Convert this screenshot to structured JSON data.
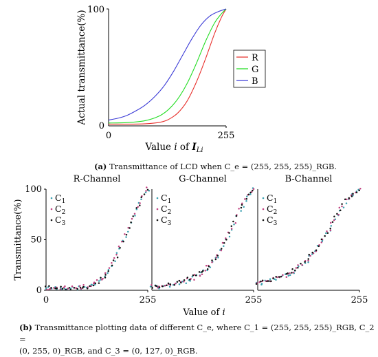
{
  "chart_data": [
    {
      "type": "line",
      "panel": "a",
      "title": "",
      "xlabel": "Value i of I_Li",
      "ylabel": "Actual transmittance(%)",
      "xlim": [
        0,
        255
      ],
      "ylim": [
        0,
        100
      ],
      "xticks": [
        "0",
        "255"
      ],
      "yticks": [
        "0",
        "100"
      ],
      "legend_position": "right",
      "series": [
        {
          "name": "R",
          "color": "#e8302c",
          "x": [
            0,
            40,
            80,
            110,
            130,
            150,
            170,
            190,
            210,
            230,
            245,
            255
          ],
          "y": [
            1.5,
            1.5,
            1.8,
            3,
            5.5,
            11,
            21,
            37,
            57,
            79,
            93,
            100
          ]
        },
        {
          "name": "G",
          "color": "#22dd22",
          "x": [
            0,
            40,
            80,
            110,
            130,
            150,
            170,
            190,
            210,
            230,
            245,
            255
          ],
          "y": [
            2.5,
            2.8,
            4.5,
            8.5,
            14,
            23,
            36,
            53,
            72,
            88,
            96,
            100
          ]
        },
        {
          "name": "B",
          "color": "#3a3ad6",
          "x": [
            0,
            20,
            40,
            60,
            80,
            100,
            120,
            140,
            160,
            180,
            200,
            220,
            240,
            255
          ],
          "y": [
            5,
            6.5,
            9,
            13,
            18,
            25,
            34,
            46,
            60,
            74,
            86,
            94,
            98,
            100
          ]
        }
      ]
    },
    {
      "type": "scatter",
      "panel": "b",
      "title": "R-Channel",
      "xlabel": "",
      "ylabel": "Transmittance(%)",
      "xlim": [
        0,
        255
      ],
      "ylim": [
        0,
        100
      ],
      "xticks": [
        "0",
        "255"
      ],
      "yticks": [
        "0",
        "50",
        "100"
      ],
      "legend": [
        "C1",
        "C2",
        "C3"
      ],
      "series": [
        {
          "name": "C1",
          "color": "#3aa0b0",
          "x": [
            0,
            25,
            50,
            75,
            100,
            125,
            145,
            165,
            185,
            205,
            225,
            245,
            255
          ],
          "y": [
            1.5,
            1.5,
            1.8,
            2.2,
            3,
            6,
            12,
            24,
            40,
            58,
            78,
            94,
            100
          ]
        },
        {
          "name": "C2",
          "color": "#c04080",
          "x": [
            0,
            25,
            50,
            75,
            100,
            125,
            145,
            165,
            185,
            205,
            225,
            245,
            255
          ],
          "y": [
            2,
            1.6,
            2,
            2.4,
            3.5,
            6.5,
            13,
            25,
            41,
            60,
            80,
            95,
            100
          ]
        },
        {
          "name": "C3",
          "color": "#111111",
          "x": [
            0,
            25,
            50,
            75,
            100,
            125,
            145,
            165,
            185,
            205,
            225,
            245,
            255
          ],
          "y": [
            2.5,
            2,
            2.2,
            2.5,
            3.2,
            7,
            12.5,
            23,
            39,
            59,
            79,
            93,
            99
          ]
        }
      ]
    },
    {
      "type": "scatter",
      "panel": "b",
      "title": "G-Channel",
      "xlabel": "Value of i",
      "ylabel": "",
      "xlim": [
        0,
        255
      ],
      "ylim": [
        0,
        100
      ],
      "xticks": [
        "255"
      ],
      "yticks": [],
      "legend": [
        "C1",
        "C2",
        "C3"
      ],
      "series": [
        {
          "name": "C1",
          "color": "#3aa0b0",
          "x": [
            0,
            25,
            50,
            75,
            100,
            125,
            145,
            165,
            185,
            205,
            225,
            245,
            255
          ],
          "y": [
            3,
            3.5,
            5,
            7.5,
            11,
            17,
            24,
            34,
            48,
            64,
            82,
            95,
            100
          ]
        },
        {
          "name": "C2",
          "color": "#c04080",
          "x": [
            0,
            25,
            50,
            75,
            100,
            125,
            145,
            165,
            185,
            205,
            225,
            245,
            255
          ],
          "y": [
            3.5,
            4,
            5.5,
            8,
            11.5,
            17.5,
            25,
            35,
            49,
            65,
            83,
            95,
            100
          ]
        },
        {
          "name": "C3",
          "color": "#111111",
          "x": [
            0,
            25,
            50,
            75,
            100,
            125,
            145,
            165,
            185,
            205,
            225,
            245,
            255
          ],
          "y": [
            4,
            4.2,
            5.8,
            8.5,
            12,
            18,
            25.5,
            35.5,
            49.5,
            66,
            83.5,
            96,
            100
          ]
        }
      ]
    },
    {
      "type": "scatter",
      "panel": "b",
      "title": "B-Channel",
      "xlabel": "",
      "ylabel": "",
      "xlim": [
        0,
        255
      ],
      "ylim": [
        0,
        100
      ],
      "xticks": [
        "255"
      ],
      "yticks": [],
      "legend": [
        "C1",
        "C2",
        "C3"
      ],
      "series": [
        {
          "name": "C1",
          "color": "#3aa0b0",
          "x": [
            0,
            25,
            50,
            75,
            100,
            125,
            145,
            165,
            185,
            205,
            225,
            245,
            255
          ],
          "y": [
            6,
            8,
            11,
            15,
            21,
            30,
            40,
            51,
            64,
            78,
            90,
            97,
            99
          ]
        },
        {
          "name": "C2",
          "color": "#c04080",
          "x": [
            0,
            25,
            50,
            75,
            100,
            125,
            145,
            165,
            185,
            205,
            225,
            245,
            255
          ],
          "y": [
            6.5,
            8.5,
            11.5,
            15.5,
            22,
            30.5,
            40.5,
            52,
            65,
            79,
            91,
            97,
            99
          ]
        },
        {
          "name": "C3",
          "color": "#111111",
          "x": [
            0,
            25,
            50,
            75,
            100,
            125,
            145,
            165,
            185,
            205,
            225,
            245,
            255
          ],
          "y": [
            7,
            9,
            12,
            16,
            22.5,
            31,
            41,
            52.5,
            65.5,
            79.5,
            91,
            97.5,
            100
          ]
        }
      ]
    }
  ],
  "captions": {
    "a_label": "(a)",
    "a_text": "Transmittance of LCD when C_e = (255, 255, 255)_RGB.",
    "b_label": "(b)",
    "b_line1": "Transmittance plotting data of different C_e, where C_1 = (255, 255, 255)_RGB, C_2 =",
    "b_line2": "(0, 255, 0)_RGB, and C_3 = (0, 127, 0)_RGB."
  }
}
